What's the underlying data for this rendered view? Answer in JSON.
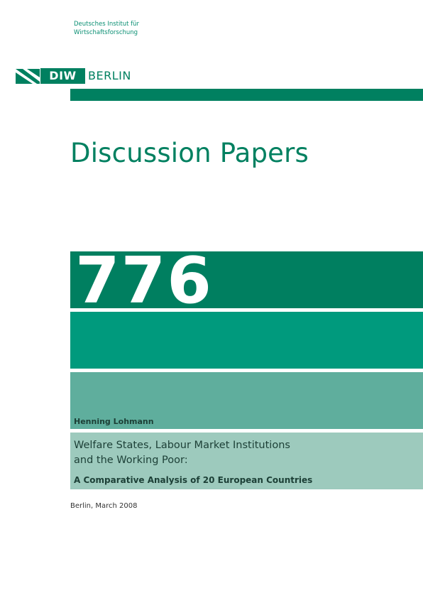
{
  "institute": {
    "line1": "Deutsches Institut für",
    "line2": "Wirtschaftsforschung"
  },
  "logo": {
    "mark_text": "DIW",
    "city_text": "BERLIN",
    "brand_color": "#008060"
  },
  "series_title": "Discussion Papers",
  "paper_number": "776",
  "author": "Henning Lohmann",
  "title": {
    "line1": "Welfare States, Labour Market Institutions",
    "line2": "and the Working Poor:",
    "subtitle": "A Comparative Analysis of 20 European Countries"
  },
  "place_date": "Berlin, March 2008",
  "colors": {
    "band_dark": "#007f60",
    "band_medium": "#009a7d",
    "band_light": "#5fae9d",
    "band_pale": "#9dcabd"
  }
}
